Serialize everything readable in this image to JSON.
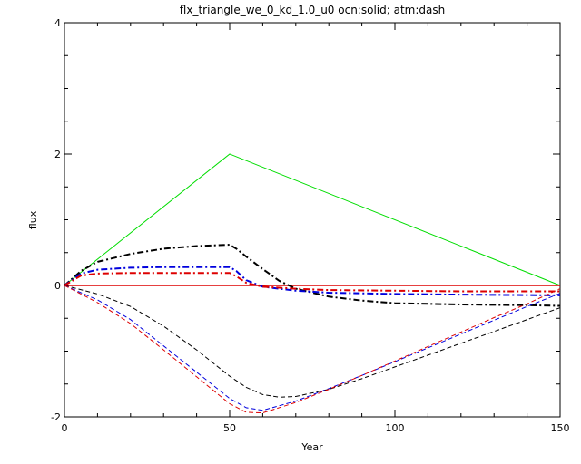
{
  "chart_data": {
    "type": "line",
    "title": "flx_triangle_we_0_kd_1.0_u0 ocn:solid; atm:dash",
    "xlabel": "Year",
    "ylabel": "flux",
    "xlim": [
      0,
      150
    ],
    "ylim": [
      -2,
      4
    ],
    "x_ticks": [
      0,
      50,
      100,
      150
    ],
    "y_ticks": [
      -2,
      0,
      2,
      4
    ],
    "x_tick_labels": [
      "0",
      "50",
      "100",
      "150"
    ],
    "y_tick_labels": [
      "-2",
      "0",
      "2",
      "4"
    ],
    "grid": false,
    "series": [
      {
        "style": "solid",
        "color": "#00dd00",
        "x": [
          0,
          50,
          150
        ],
        "y": [
          0,
          2.0,
          0.0
        ]
      },
      {
        "style": "solid",
        "color": "#dd0000",
        "x": [
          0,
          150
        ],
        "y": [
          0,
          0
        ]
      },
      {
        "style": "dashdot",
        "color": "#000000",
        "x": [
          0,
          5,
          10,
          20,
          30,
          40,
          50,
          52,
          55,
          60,
          65,
          70,
          80,
          90,
          100,
          120,
          140,
          150
        ],
        "y": [
          0,
          0.22,
          0.36,
          0.48,
          0.56,
          0.6,
          0.62,
          0.56,
          0.44,
          0.25,
          0.07,
          -0.05,
          -0.17,
          -0.23,
          -0.27,
          -0.29,
          -0.3,
          -0.31
        ]
      },
      {
        "style": "dashdot",
        "color": "#0000dd",
        "x": [
          0,
          5,
          10,
          20,
          30,
          40,
          50,
          52,
          55,
          60,
          70,
          80,
          100,
          120,
          150
        ],
        "y": [
          0,
          0.18,
          0.24,
          0.27,
          0.28,
          0.28,
          0.28,
          0.22,
          0.08,
          -0.02,
          -0.08,
          -0.11,
          -0.13,
          -0.14,
          -0.15
        ]
      },
      {
        "style": "dashdot",
        "color": "#dd0000",
        "x": [
          0,
          5,
          10,
          20,
          30,
          40,
          50,
          52,
          55,
          60,
          70,
          80,
          100,
          120,
          150
        ],
        "y": [
          0,
          0.15,
          0.18,
          0.19,
          0.19,
          0.19,
          0.19,
          0.14,
          0.04,
          -0.02,
          -0.05,
          -0.07,
          -0.08,
          -0.09,
          -0.09
        ]
      },
      {
        "style": "dashed",
        "color": "#000000",
        "x": [
          0,
          10,
          20,
          30,
          40,
          50,
          55,
          60,
          65,
          70,
          80,
          90,
          100,
          110,
          120,
          130,
          140,
          150
        ],
        "y": [
          0,
          -0.13,
          -0.32,
          -0.62,
          -0.98,
          -1.38,
          -1.55,
          -1.66,
          -1.7,
          -1.69,
          -1.58,
          -1.42,
          -1.24,
          -1.06,
          -0.88,
          -0.7,
          -0.52,
          -0.34
        ]
      },
      {
        "style": "dashed",
        "color": "#0000dd",
        "x": [
          0,
          10,
          20,
          30,
          40,
          50,
          55,
          60,
          70,
          80,
          90,
          100,
          110,
          120,
          130,
          140,
          150
        ],
        "y": [
          0,
          -0.22,
          -0.52,
          -0.92,
          -1.32,
          -1.72,
          -1.86,
          -1.9,
          -1.76,
          -1.57,
          -1.37,
          -1.16,
          -0.95,
          -0.74,
          -0.53,
          -0.32,
          -0.12
        ]
      },
      {
        "style": "dashed",
        "color": "#dd0000",
        "x": [
          0,
          10,
          20,
          30,
          40,
          50,
          55,
          60,
          70,
          80,
          90,
          100,
          110,
          120,
          130,
          140,
          150
        ],
        "y": [
          0,
          -0.26,
          -0.58,
          -0.98,
          -1.39,
          -1.8,
          -1.93,
          -1.94,
          -1.78,
          -1.58,
          -1.37,
          -1.15,
          -0.93,
          -0.71,
          -0.49,
          -0.28,
          -0.05
        ]
      }
    ]
  }
}
